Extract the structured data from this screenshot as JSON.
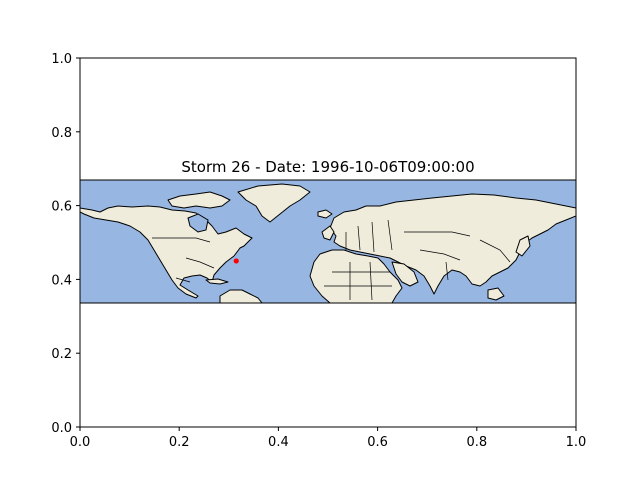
{
  "title": "Storm 26 - Date: 1996-10-06T09:00:00",
  "colors": {
    "ocean": "#97b6e1",
    "land": "#efecdc",
    "marker": "#ff0000",
    "axes": "#000000"
  },
  "chart_data": {
    "type": "scatter",
    "title": "Storm 26 - Date: 1996-10-06T09:00:00",
    "xlim": [
      0,
      1
    ],
    "ylim": [
      0,
      1
    ],
    "x_ticks": [
      "0.0",
      "0.2",
      "0.4",
      "0.6",
      "0.8",
      "1.0"
    ],
    "y_ticks": [
      "0.0",
      "0.2",
      "0.4",
      "0.6",
      "0.8",
      "1.0"
    ],
    "map_extent_y": [
      0.333,
      0.667
    ],
    "points": [
      {
        "x": 0.315,
        "y": 0.45,
        "color": "#ff0000"
      }
    ],
    "grid": false
  }
}
